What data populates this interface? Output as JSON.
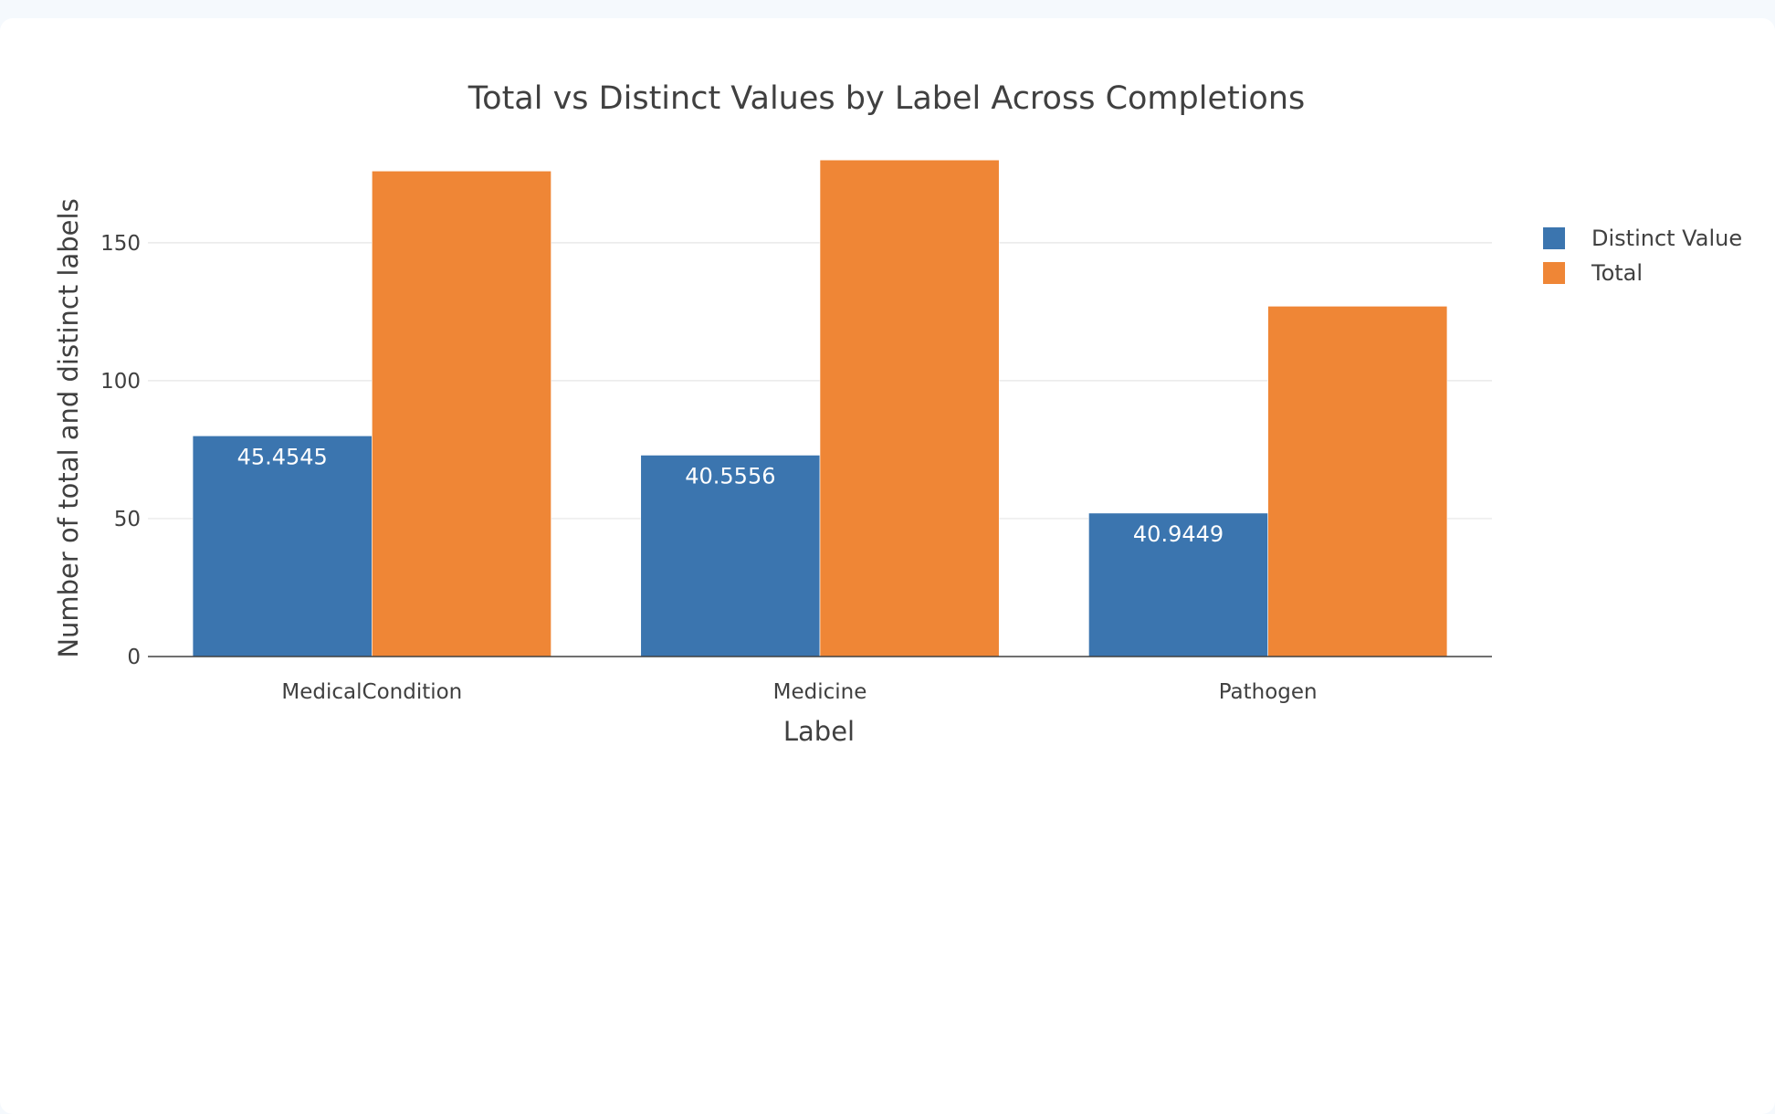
{
  "chart_data": {
    "type": "bar",
    "title": "Total vs Distinct Values by Label Across Completions",
    "xlabel": "Label",
    "ylabel": "Number of total and distinct labels",
    "categories": [
      "MedicalCondition",
      "Medicine",
      "Pathogen"
    ],
    "ylim": [
      0,
      190
    ],
    "yticks": [
      0,
      50,
      100,
      150
    ],
    "grid": true,
    "legend_position": "top-right",
    "series": [
      {
        "name": "Distinct Value",
        "color": "#3b75af",
        "values": [
          80,
          73,
          52
        ],
        "labels": [
          "45.4545",
          "40.5556",
          "40.9449"
        ]
      },
      {
        "name": "Total",
        "color": "#ef8636",
        "values": [
          176,
          180,
          127
        ],
        "labels": [
          "",
          "",
          ""
        ]
      }
    ]
  }
}
